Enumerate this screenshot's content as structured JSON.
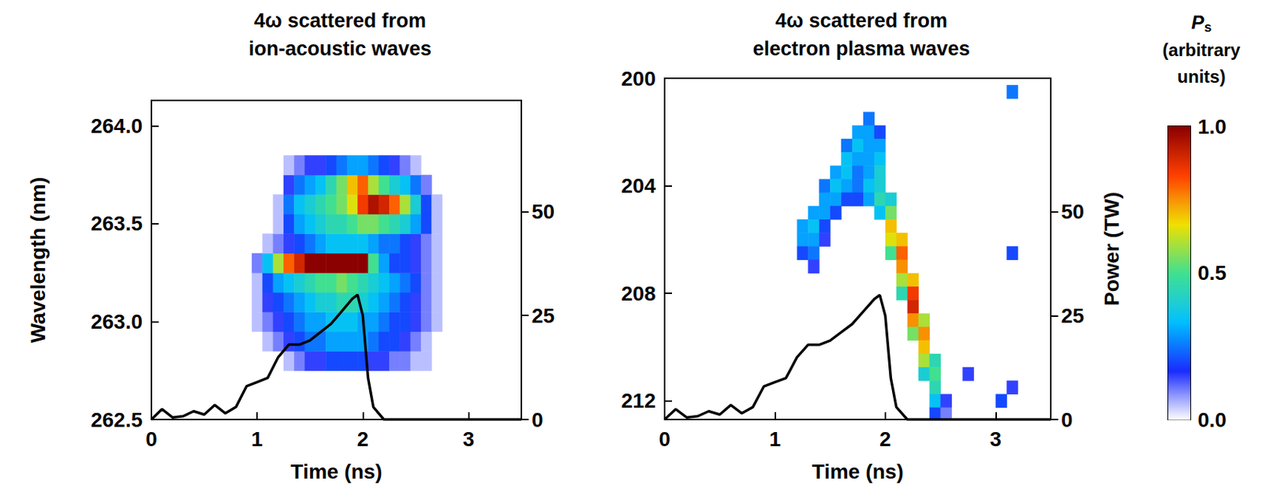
{
  "chart_data": [
    {
      "type": "heatmap",
      "title": "4ω scattered from ion-acoustic waves",
      "x_label": "Time (ns)",
      "y_label": "Wavelength (nm)",
      "xlim": [
        0,
        3.5
      ],
      "xticks": [
        0,
        1,
        2,
        3
      ],
      "ylim": [
        262.5,
        264.13
      ],
      "yticks": [
        262.5,
        {
          "value": 263.0,
          "label": "263.0"
        },
        263.5,
        {
          "value": 264.0,
          "label": "264.0"
        }
      ],
      "y2lim": [
        0,
        76.7
      ],
      "y2ticks": [
        0,
        25,
        50
      ],
      "cell_size": [
        0.1,
        0.1
      ],
      "heatmap": {
        "x": [
          1.0,
          1.1,
          1.2,
          1.3,
          1.4,
          1.5,
          1.6,
          1.7,
          1.8,
          1.9,
          2.0,
          2.1,
          2.2,
          2.3,
          2.4,
          2.5,
          2.6,
          2.7
        ],
        "y": [
          262.8,
          262.9,
          263.0,
          263.1,
          263.2,
          263.3,
          263.4,
          263.5,
          263.6,
          263.7,
          263.8
        ],
        "z": [
          [
            0,
            0,
            0,
            0.05,
            0.1,
            0.15,
            0.15,
            0.2,
            0.2,
            0.2,
            0.2,
            0.15,
            0.15,
            0.1,
            0.1,
            0.05,
            0.05,
            0
          ],
          [
            0,
            0.05,
            0.1,
            0.15,
            0.2,
            0.25,
            0.25,
            0.3,
            0.3,
            0.3,
            0.3,
            0.25,
            0.2,
            0.2,
            0.15,
            0.1,
            0.05,
            0
          ],
          [
            0.05,
            0.1,
            0.15,
            0.2,
            0.25,
            0.3,
            0.3,
            0.35,
            0.35,
            0.35,
            0.3,
            0.3,
            0.25,
            0.2,
            0.2,
            0.15,
            0.1,
            0.05
          ],
          [
            0.05,
            0.15,
            0.2,
            0.25,
            0.3,
            0.35,
            0.4,
            0.4,
            0.45,
            0.45,
            0.4,
            0.35,
            0.3,
            0.25,
            0.2,
            0.15,
            0.1,
            0.05
          ],
          [
            0.05,
            0.2,
            0.3,
            0.35,
            0.4,
            0.45,
            0.5,
            0.5,
            0.55,
            0.5,
            0.45,
            0.4,
            0.35,
            0.3,
            0.25,
            0.2,
            0.1,
            0.05
          ],
          [
            0.1,
            0.35,
            0.6,
            0.8,
            0.9,
            1,
            1,
            1,
            1,
            1,
            1,
            0.5,
            0.3,
            0.2,
            0.2,
            0.15,
            0.1,
            0.05
          ],
          [
            0,
            0.05,
            0.1,
            0.15,
            0.2,
            0.25,
            0.3,
            0.35,
            0.35,
            0.35,
            0.35,
            0.3,
            0.25,
            0.25,
            0.2,
            0.15,
            0.1,
            0.05
          ],
          [
            0,
            0,
            0.05,
            0.2,
            0.3,
            0.35,
            0.4,
            0.45,
            0.45,
            0.5,
            0.55,
            0.55,
            0.5,
            0.45,
            0.4,
            0.3,
            0.2,
            0.05
          ],
          [
            0,
            0,
            0.05,
            0.25,
            0.35,
            0.4,
            0.45,
            0.5,
            0.55,
            0.65,
            0.85,
            0.95,
            0.9,
            0.8,
            0.6,
            0.4,
            0.2,
            0.05
          ],
          [
            0,
            0,
            0,
            0.15,
            0.25,
            0.3,
            0.35,
            0.45,
            0.55,
            0.7,
            0.8,
            0.6,
            0.5,
            0.4,
            0.35,
            0.25,
            0.1,
            0
          ],
          [
            0,
            0,
            0,
            0.05,
            0.1,
            0.15,
            0.15,
            0.2,
            0.25,
            0.3,
            0.3,
            0.25,
            0.2,
            0.15,
            0.1,
            0.05,
            0,
            0
          ]
        ]
      },
      "series": [
        {
          "type": "line",
          "axis": "y2",
          "color": "#000000",
          "x": [
            0,
            0.1,
            0.2,
            0.3,
            0.4,
            0.5,
            0.6,
            0.7,
            0.8,
            0.9,
            1.0,
            1.1,
            1.2,
            1.3,
            1.4,
            1.5,
            1.6,
            1.7,
            1.8,
            1.9,
            1.95,
            2.0,
            2.05,
            2.1,
            2.2,
            3.5
          ],
          "values": [
            0,
            2.5,
            0.5,
            0.8,
            2,
            1.2,
            3.5,
            1.5,
            3,
            8,
            9,
            10,
            15,
            18,
            18,
            19,
            21,
            23,
            26,
            29,
            30,
            25,
            10,
            3,
            0,
            0
          ]
        }
      ]
    },
    {
      "type": "heatmap",
      "title": "4ω scattered from electron plasma waves",
      "x_label": "Time (ns)",
      "y2_label": "Power (TW)",
      "xlim": [
        0,
        3.5
      ],
      "xticks": [
        0,
        1,
        2,
        3
      ],
      "ylim": [
        212.7,
        200
      ],
      "yticks": [
        200,
        204,
        208,
        212
      ],
      "y2lim": [
        0,
        82.2
      ],
      "y2ticks": [
        0,
        25,
        50
      ],
      "cell_size": [
        0.1,
        0.5
      ],
      "cells": [
        [
          1.25,
          205.5,
          0.3
        ],
        [
          1.25,
          206,
          0.3
        ],
        [
          1.25,
          206.5,
          0.2
        ],
        [
          1.35,
          205,
          0.3
        ],
        [
          1.35,
          205.5,
          0.35
        ],
        [
          1.35,
          206,
          0.3
        ],
        [
          1.35,
          206.5,
          0.25
        ],
        [
          1.35,
          207,
          0.15
        ],
        [
          1.45,
          204,
          0.25
        ],
        [
          1.45,
          204.5,
          0.3
        ],
        [
          1.45,
          205,
          0.3
        ],
        [
          1.45,
          205.5,
          0.2
        ],
        [
          1.45,
          206,
          0.15
        ],
        [
          1.55,
          203.5,
          0.3
        ],
        [
          1.55,
          204,
          0.35
        ],
        [
          1.55,
          204.5,
          0.3
        ],
        [
          1.55,
          205,
          0.2
        ],
        [
          1.65,
          202.5,
          0.25
        ],
        [
          1.65,
          203,
          0.35
        ],
        [
          1.65,
          203.5,
          0.35
        ],
        [
          1.65,
          204,
          0.3
        ],
        [
          1.65,
          204.5,
          0.2
        ],
        [
          1.75,
          202,
          0.3
        ],
        [
          1.75,
          202.5,
          0.35
        ],
        [
          1.75,
          203,
          0.3
        ],
        [
          1.75,
          203.5,
          0.25
        ],
        [
          1.75,
          204,
          0.25
        ],
        [
          1.75,
          204.5,
          0.2
        ],
        [
          1.85,
          201.5,
          0.25
        ],
        [
          1.85,
          202,
          0.3
        ],
        [
          1.85,
          202.5,
          0.3
        ],
        [
          1.85,
          203,
          0.3
        ],
        [
          1.85,
          203.5,
          0.3
        ],
        [
          1.85,
          204,
          0.35
        ],
        [
          1.85,
          204.5,
          0.3
        ],
        [
          1.95,
          202,
          0.2
        ],
        [
          1.95,
          202.5,
          0.3
        ],
        [
          1.95,
          203,
          0.35
        ],
        [
          1.95,
          203.5,
          0.4
        ],
        [
          1.95,
          204,
          0.4
        ],
        [
          1.95,
          204.5,
          0.45
        ],
        [
          1.95,
          205,
          0.35
        ],
        [
          2.05,
          204.5,
          0.4
        ],
        [
          2.05,
          205,
          0.55
        ],
        [
          2.05,
          205.5,
          0.7
        ],
        [
          2.05,
          206,
          0.65
        ],
        [
          2.05,
          206.5,
          0.5
        ],
        [
          2.15,
          206,
          0.7
        ],
        [
          2.15,
          206.5,
          0.8
        ],
        [
          2.15,
          207,
          0.75
        ],
        [
          2.15,
          207.5,
          0.6
        ],
        [
          2.15,
          208,
          0.45
        ],
        [
          2.25,
          207.5,
          0.7
        ],
        [
          2.25,
          208,
          0.85
        ],
        [
          2.25,
          208.5,
          0.9
        ],
        [
          2.25,
          209,
          0.75
        ],
        [
          2.25,
          209.5,
          0.55
        ],
        [
          2.35,
          209,
          0.6
        ],
        [
          2.35,
          209.5,
          0.75
        ],
        [
          2.35,
          210,
          0.7
        ],
        [
          2.35,
          210.5,
          0.6
        ],
        [
          2.35,
          211,
          0.4
        ],
        [
          2.45,
          210.5,
          0.45
        ],
        [
          2.45,
          211,
          0.5
        ],
        [
          2.45,
          211.5,
          0.45
        ],
        [
          2.45,
          212,
          0.35
        ],
        [
          2.45,
          212.5,
          0.2
        ],
        [
          2.55,
          212,
          0.15
        ],
        [
          2.55,
          212.5,
          0.1
        ],
        [
          2.75,
          211,
          0.15
        ],
        [
          3.05,
          212,
          0.2
        ],
        [
          3.15,
          200.5,
          0.25
        ],
        [
          3.15,
          206.5,
          0.2
        ],
        [
          3.15,
          211.5,
          0.15
        ]
      ],
      "series": [
        {
          "type": "line",
          "axis": "y2",
          "color": "#000000",
          "x": [
            0,
            0.1,
            0.2,
            0.3,
            0.4,
            0.5,
            0.6,
            0.7,
            0.8,
            0.9,
            1.0,
            1.1,
            1.2,
            1.3,
            1.4,
            1.5,
            1.6,
            1.7,
            1.8,
            1.9,
            1.95,
            2.0,
            2.05,
            2.1,
            2.2,
            3.5
          ],
          "values": [
            0,
            2.5,
            0.5,
            0.8,
            2,
            1.2,
            3.5,
            1.5,
            3,
            8,
            9,
            10,
            15,
            18,
            18,
            19,
            21,
            23,
            26,
            29,
            30,
            25,
            10,
            3,
            0,
            0
          ]
        }
      ]
    }
  ],
  "colorbar": {
    "title": "P",
    "title_subscript": "s",
    "units": "(arbitrary units)",
    "range": [
      0,
      1
    ],
    "ticks": [
      {
        "value": 0,
        "label": "0.0"
      },
      0.5,
      {
        "value": 1,
        "label": "1.0"
      }
    ],
    "colors": [
      "#ffffff",
      "#1a2cff",
      "#00bfff",
      "#40e090",
      "#f0e000",
      "#ff4000",
      "#8b0000"
    ]
  }
}
